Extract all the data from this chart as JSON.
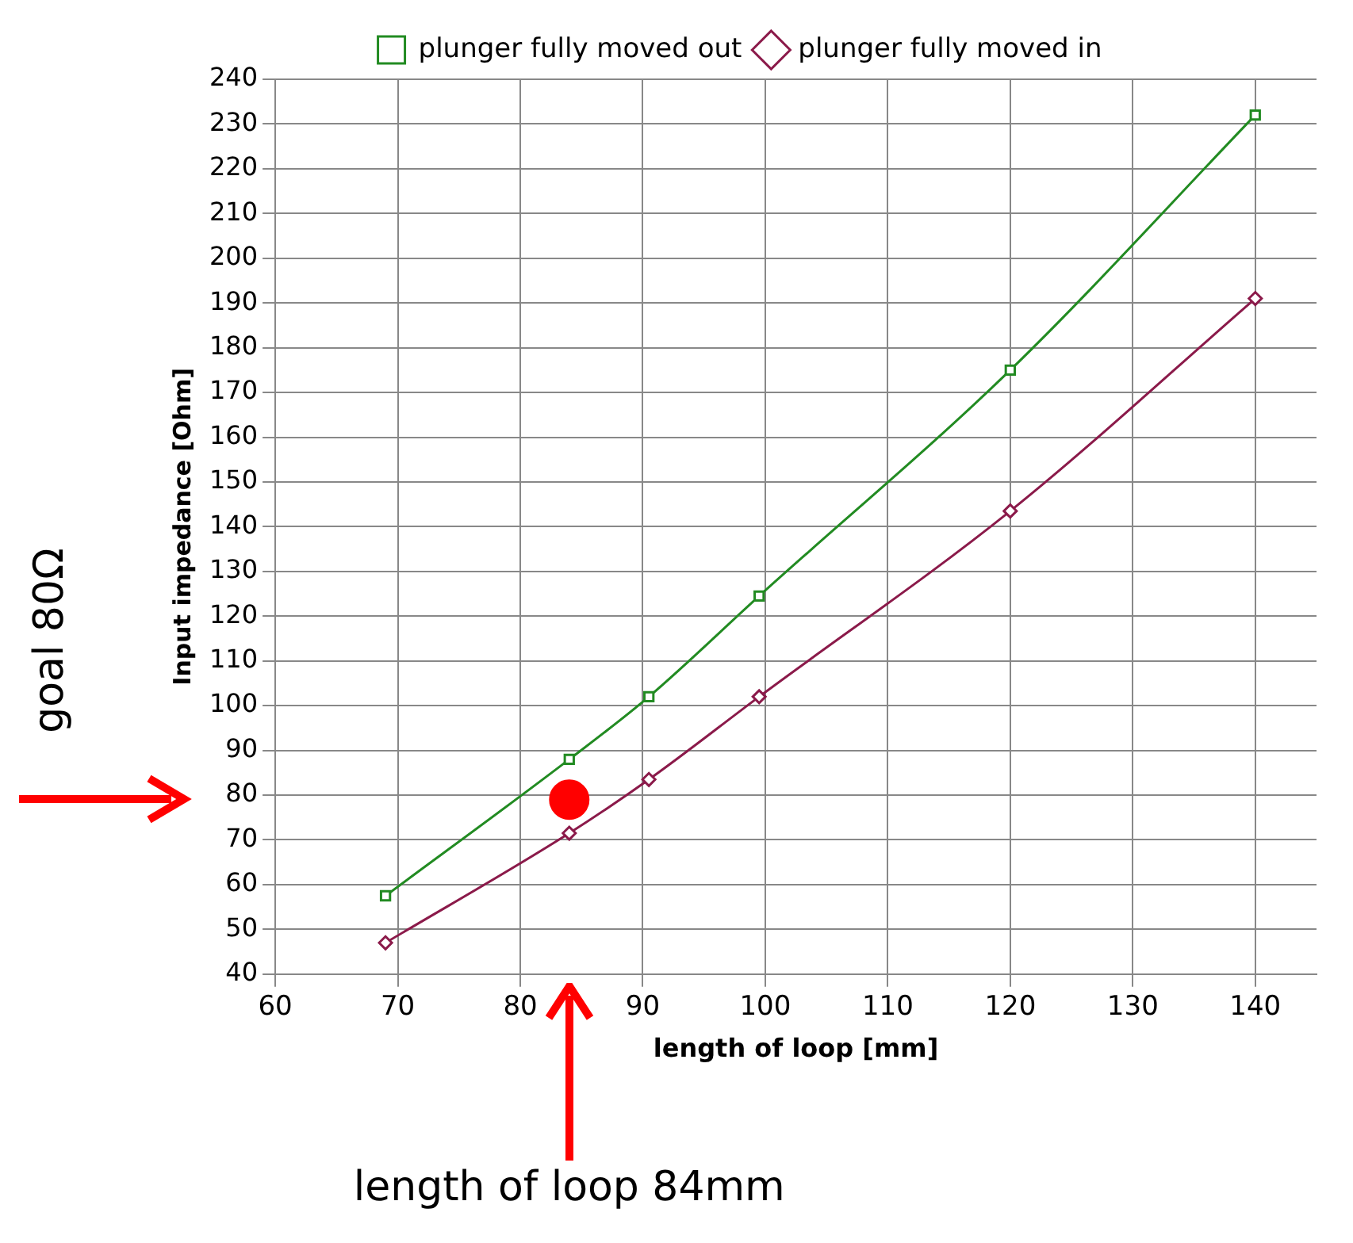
{
  "chart_data": {
    "type": "line",
    "xlabel": "length of loop [mm]",
    "ylabel": "Input impedance [Ohm]",
    "xlim": [
      60,
      145
    ],
    "xticks": [
      60,
      70,
      80,
      90,
      100,
      110,
      120,
      130,
      140
    ],
    "ylim": [
      40,
      240
    ],
    "yticks": [
      40,
      50,
      60,
      70,
      80,
      90,
      100,
      110,
      120,
      130,
      140,
      150,
      160,
      170,
      180,
      190,
      200,
      210,
      220,
      230,
      240
    ],
    "grid": true,
    "legend": "top",
    "series": [
      {
        "name": "plunger fully moved out",
        "color": "#228b22",
        "marker": "square",
        "x": [
          69,
          84,
          90.5,
          99.5,
          120,
          140
        ],
        "values": [
          57.5,
          88,
          102,
          124.5,
          175,
          232
        ]
      },
      {
        "name": "plunger fully moved in",
        "color": "#8b1a4a",
        "marker": "diamond",
        "x": [
          69,
          84,
          90.5,
          99.5,
          120,
          140
        ],
        "values": [
          47,
          71.5,
          83.5,
          102,
          143.5,
          191
        ]
      },
      {
        "type": "scatter",
        "color": "#ff0000",
        "marker": "circle",
        "x": [
          84
        ],
        "values": [
          79
        ]
      }
    ],
    "annotations": [
      "goal 80Ω",
      "length of loop 84mm"
    ]
  }
}
